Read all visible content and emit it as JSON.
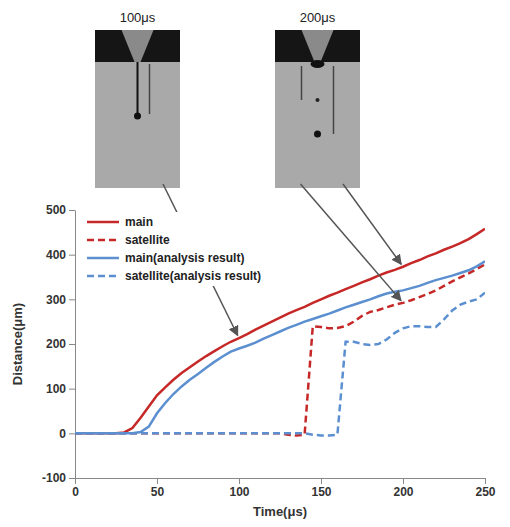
{
  "chart_data": {
    "type": "line",
    "x_label": "Time(μs)",
    "y_label": "Distance(μm)",
    "x": [
      0,
      5,
      10,
      15,
      20,
      25,
      30,
      35,
      40,
      45,
      50,
      55,
      60,
      65,
      70,
      75,
      80,
      85,
      90,
      95,
      100,
      105,
      110,
      115,
      120,
      125,
      130,
      135,
      140,
      145,
      150,
      155,
      160,
      165,
      170,
      175,
      180,
      185,
      190,
      195,
      200,
      205,
      210,
      215,
      220,
      225,
      230,
      235,
      240,
      245,
      250
    ],
    "series": [
      {
        "name": "main",
        "color": "#c62828",
        "line_style": "solid",
        "values": [
          0,
          0,
          0,
          0,
          0,
          0,
          2,
          12,
          35,
          60,
          85,
          103,
          120,
          135,
          148,
          161,
          173,
          184,
          195,
          205,
          213,
          222,
          232,
          241,
          250,
          259,
          268,
          276,
          283,
          292,
          300,
          308,
          315,
          323,
          330,
          338,
          345,
          353,
          360,
          366,
          373,
          381,
          388,
          396,
          403,
          411,
          418,
          426,
          435,
          446,
          458
        ]
      },
      {
        "name": "satellite",
        "color": "#c62828",
        "line_style": "dashed",
        "values": [
          0,
          0,
          0,
          0,
          0,
          0,
          0,
          0,
          0,
          0,
          0,
          0,
          0,
          0,
          0,
          0,
          0,
          0,
          0,
          0,
          0,
          0,
          0,
          0,
          0,
          0,
          -3,
          -5,
          -3,
          240,
          238,
          235,
          236,
          240,
          250,
          263,
          272,
          276,
          282,
          288,
          292,
          298,
          305,
          312,
          320,
          330,
          340,
          349,
          358,
          368,
          378
        ]
      },
      {
        "name": "main(analysis result)",
        "color": "#5b8fd0",
        "line_style": "solid",
        "values": [
          0,
          0,
          0,
          0,
          0,
          0,
          0,
          0,
          3,
          15,
          45,
          68,
          88,
          105,
          120,
          133,
          147,
          160,
          172,
          183,
          190,
          196,
          203,
          212,
          220,
          228,
          236,
          243,
          250,
          256,
          262,
          268,
          275,
          282,
          288,
          294,
          300,
          307,
          313,
          317,
          320,
          325,
          330,
          337,
          343,
          348,
          353,
          359,
          365,
          374,
          385
        ]
      },
      {
        "name": "satellite(analysis result)",
        "color": "#5b8fd0",
        "line_style": "dashed",
        "values": [
          0,
          0,
          0,
          0,
          0,
          0,
          0,
          0,
          0,
          0,
          0,
          0,
          0,
          0,
          0,
          0,
          0,
          0,
          0,
          0,
          0,
          0,
          0,
          0,
          0,
          0,
          0,
          0,
          0,
          -3,
          -5,
          -5,
          -3,
          205,
          205,
          200,
          198,
          200,
          210,
          225,
          235,
          240,
          240,
          238,
          238,
          255,
          275,
          288,
          295,
          300,
          315
        ]
      }
    ],
    "xlim": [
      0,
      250
    ],
    "xticks": [
      0,
      50,
      100,
      150,
      200,
      250
    ],
    "ylim": [
      -100,
      500
    ],
    "yticks": [
      -100,
      0,
      100,
      200,
      300,
      400,
      500
    ],
    "grid": false,
    "legend": "upper left",
    "annotations": [
      {
        "text": "100μs",
        "x": 100,
        "targets": [
          "main"
        ]
      },
      {
        "text": "200μs",
        "x": 200,
        "targets": [
          "satellite",
          "main"
        ]
      }
    ]
  }
}
